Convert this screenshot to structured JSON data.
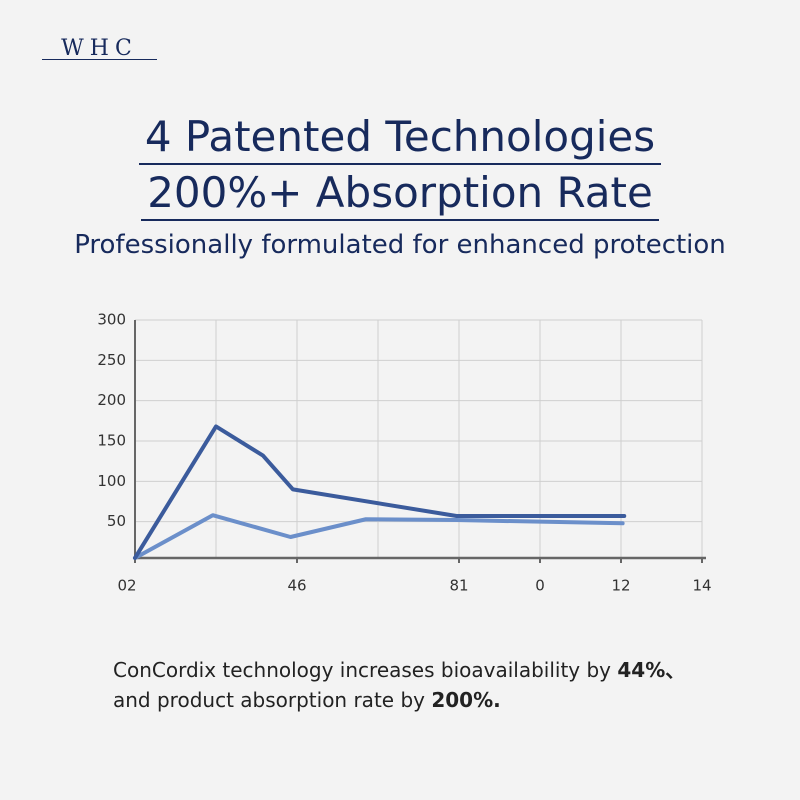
{
  "logo": "WHC",
  "header": {
    "title_line1": "4 Patented Technologies",
    "title_line2": "200%+ Absorption Rate",
    "subtitle": "Professionally formulated for enhanced protection"
  },
  "chart_data": {
    "type": "line",
    "xlim": [
      0,
      7
    ],
    "xticks": [
      {
        "value": 0,
        "label": "02"
      },
      {
        "value": 2,
        "label": "46"
      },
      {
        "value": 4,
        "label": "81"
      },
      {
        "value": 5,
        "label": "0"
      },
      {
        "value": 6,
        "label": "12"
      },
      {
        "value": 7,
        "label": "14"
      }
    ],
    "xgrid": [
      0,
      1,
      2,
      3,
      4,
      5,
      6,
      7
    ],
    "ylim": [
      0,
      300
    ],
    "yticks": [
      50,
      100,
      150,
      200,
      250,
      300
    ],
    "grid": true,
    "series": [
      {
        "color": "#3b5b9c",
        "x": [
          0,
          1,
          1.58,
          1.95,
          3.97,
          6.04
        ],
        "values": [
          5,
          168,
          132,
          90,
          57,
          57
        ]
      },
      {
        "color": "#6b8fca",
        "x": [
          0,
          0.96,
          1.92,
          2.85,
          3.97,
          6.02
        ],
        "values": [
          5,
          58,
          31,
          53,
          52,
          48
        ]
      }
    ]
  },
  "caption": {
    "line1_text": "ConCordix technology increases bioavailability by ",
    "line1_bold": "44%、",
    "line2_text": "and product absorption rate by ",
    "line2_bold": "200%."
  }
}
